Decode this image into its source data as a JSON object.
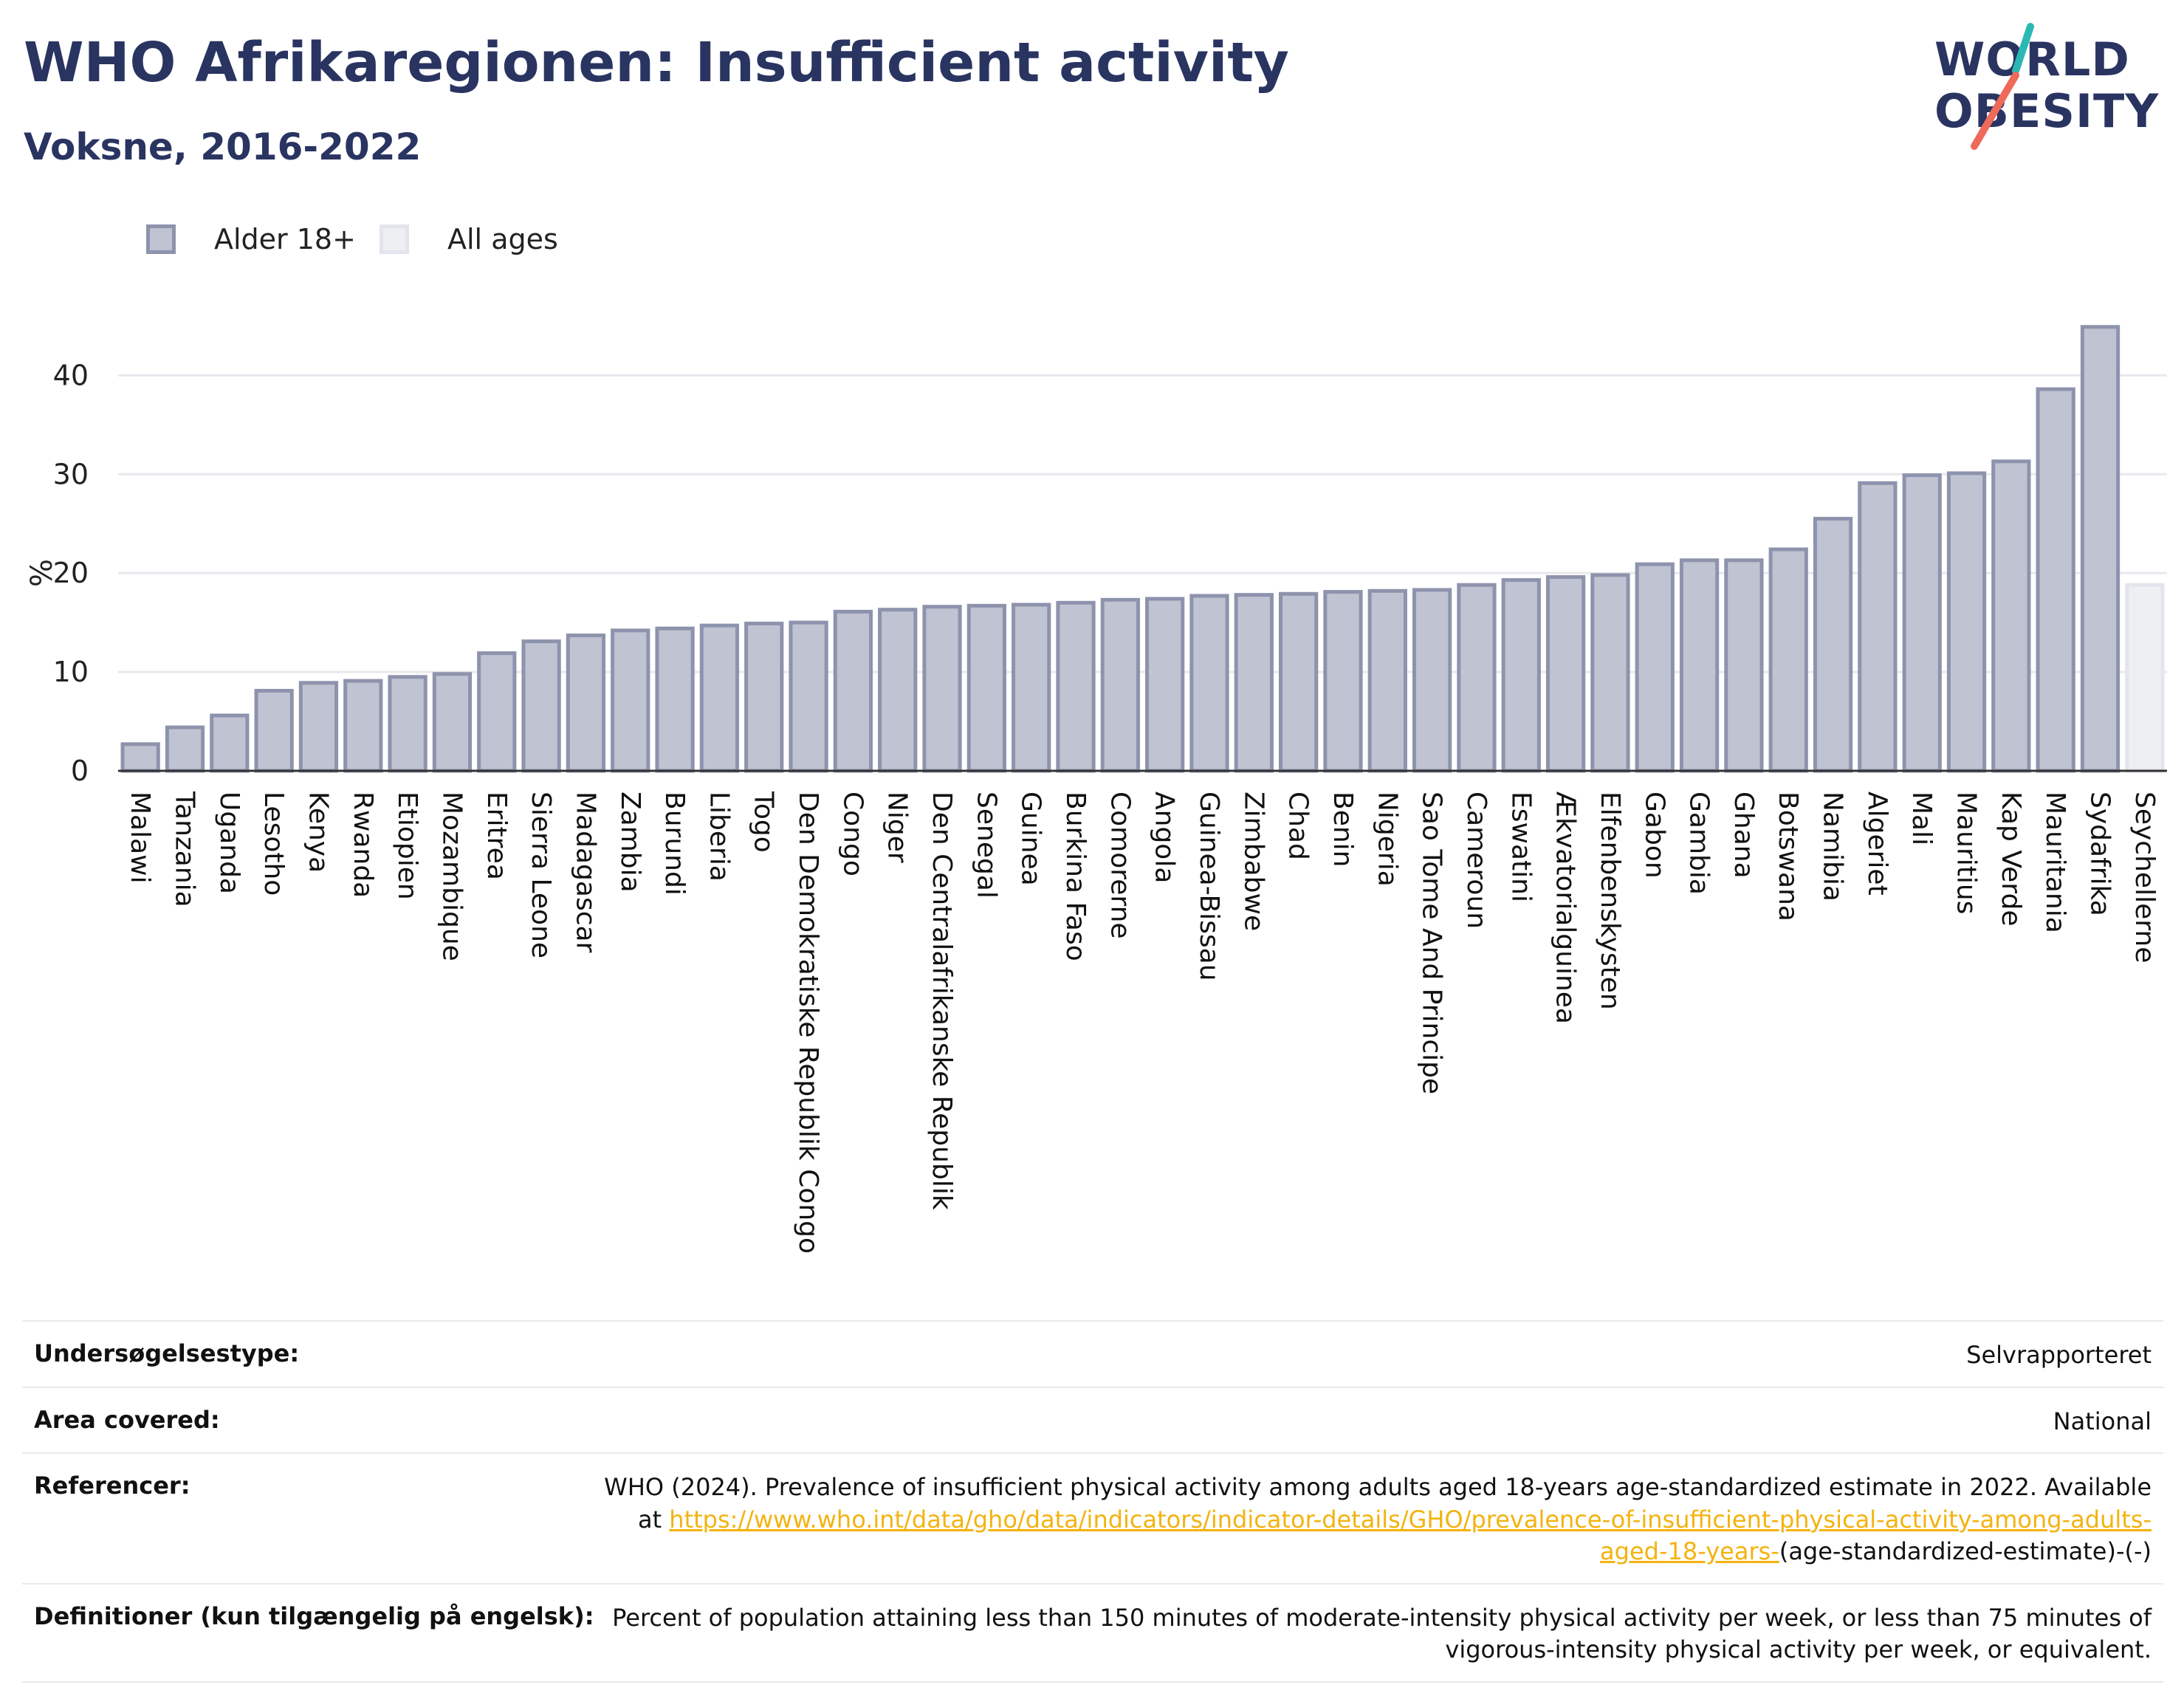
{
  "header": {
    "title": "WHO Afrikaregionen: Insufficient activity",
    "subtitle": "Voksne, 2016-2022"
  },
  "logo": {
    "line1": "WORLD",
    "line2": "OBESITY",
    "teal": "#2bb8b4",
    "coral": "#ee6a5a"
  },
  "colors": {
    "bar_fill": "#c0c3d1",
    "bar_stroke": "#8e93ad",
    "bar_light_fill": "#eeeff3",
    "bar_light_stroke": "#e3e4ec",
    "grid": "#e8e8ee",
    "axis": "#333333"
  },
  "chart_data": {
    "type": "bar",
    "ylabel": "%",
    "ylim": [
      0,
      46
    ],
    "yticks": [
      0,
      10,
      20,
      30,
      40
    ],
    "grid": true,
    "legend_position": "top-left",
    "legend": [
      {
        "name": "Alder 18+",
        "style": "dark"
      },
      {
        "name": "All ages",
        "style": "light"
      }
    ],
    "categories": [
      "Malawi",
      "Tanzania",
      "Uganda",
      "Lesotho",
      "Kenya",
      "Rwanda",
      "Etiopien",
      "Mozambique",
      "Eritrea",
      "Sierra Leone",
      "Madagascar",
      "Zambia",
      "Burundi",
      "Liberia",
      "Togo",
      "Den Demokratiske Republik Congo",
      "Congo",
      "Niger",
      "Den Centralafrikanske Republik",
      "Senegal",
      "Guinea",
      "Burkina Faso",
      "Comorerne",
      "Angola",
      "Guinea-Bissau",
      "Zimbabwe",
      "Chad",
      "Benin",
      "Nigeria",
      "Sao Tome And Principe",
      "Cameroun",
      "Eswatini",
      "Ækvatorialguinea",
      "Elfenbenskysten",
      "Gabon",
      "Gambia",
      "Ghana",
      "Botswana",
      "Namibia",
      "Algeriet",
      "Mali",
      "Mauritius",
      "Kap Verde",
      "Mauritania",
      "Sydafrika",
      "Seychellerne"
    ],
    "values": [
      2.7,
      4.4,
      5.6,
      8.1,
      8.9,
      9.1,
      9.5,
      9.8,
      11.9,
      13.1,
      13.7,
      14.2,
      14.4,
      14.7,
      14.9,
      15.0,
      16.1,
      16.3,
      16.6,
      16.7,
      16.8,
      17.0,
      17.3,
      17.4,
      17.7,
      17.8,
      17.9,
      18.1,
      18.2,
      18.3,
      18.8,
      19.3,
      19.6,
      19.8,
      20.9,
      21.3,
      21.3,
      22.4,
      25.5,
      29.1,
      29.9,
      30.1,
      31.3,
      38.6,
      44.9,
      18.8
    ],
    "series_style": [
      "dark",
      "dark",
      "dark",
      "dark",
      "dark",
      "dark",
      "dark",
      "dark",
      "dark",
      "dark",
      "dark",
      "dark",
      "dark",
      "dark",
      "dark",
      "dark",
      "dark",
      "dark",
      "dark",
      "dark",
      "dark",
      "dark",
      "dark",
      "dark",
      "dark",
      "dark",
      "dark",
      "dark",
      "dark",
      "dark",
      "dark",
      "dark",
      "dark",
      "dark",
      "dark",
      "dark",
      "dark",
      "dark",
      "dark",
      "dark",
      "dark",
      "dark",
      "dark",
      "dark",
      "dark",
      "light"
    ]
  },
  "info": {
    "survey_type_label": "Undersøgelsestype:",
    "survey_type_value": "Selvrapporteret",
    "area_label": "Area covered:",
    "area_value": "National",
    "references_label": "Referencer:",
    "references_text": "WHO (2024). Prevalence of insufficient physical activity among adults aged 18-years age-standardized estimate in 2022. Available at",
    "references_link": "https://www.who.int/data/gho/data/indicators/indicator-details/GHO/prevalence-of-insufficient-physical-activity-among-adults-aged-18-years-",
    "references_suffix": "(age-standardized-estimate)-(-)",
    "definitions_label": "Definitioner (kun tilgængelig på engelsk):",
    "definitions_value": "Percent of population attaining less than 150 minutes of moderate-intensity physical activity per week, or less than 75 minutes of vigorous-intensity physical activity per week, or equivalent."
  }
}
